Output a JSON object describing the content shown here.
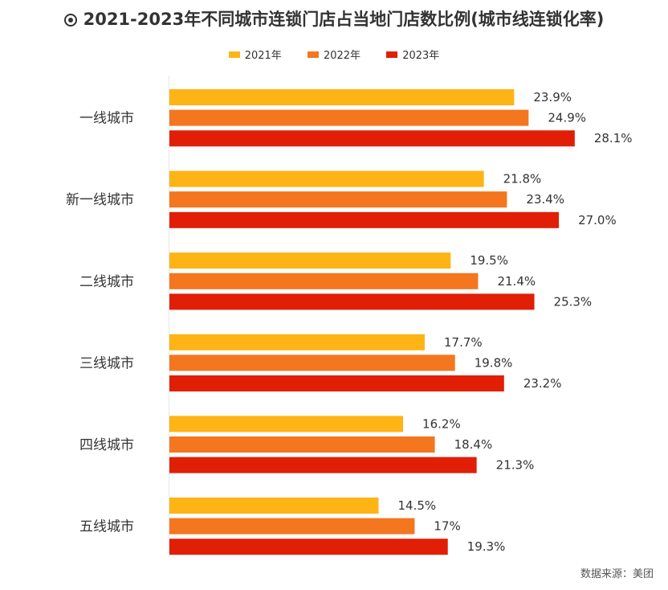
{
  "title": "2021-2023年不同城市连锁门店占当地门店数比例(城市线连锁化率)",
  "title_icon": "radio-target-icon",
  "source": "数据来源：美团",
  "chart_data": {
    "type": "bar",
    "orientation": "horizontal",
    "categories": [
      "一线城市",
      "新一线城市",
      "二线城市",
      "三线城市",
      "四线城市",
      "五线城市"
    ],
    "series": [
      {
        "name": "2021年",
        "color": "#FDB414",
        "values": [
          23.9,
          21.8,
          19.5,
          17.7,
          16.2,
          14.5
        ],
        "labels": [
          "23.9%",
          "21.8%",
          "19.5%",
          "17.7%",
          "16.2%",
          "14.5%"
        ]
      },
      {
        "name": "2022年",
        "color": "#F4761E",
        "values": [
          24.9,
          23.4,
          21.4,
          19.8,
          18.4,
          17
        ],
        "labels": [
          "24.9%",
          "23.4%",
          "21.4%",
          "19.8%",
          "18.4%",
          "17%"
        ]
      },
      {
        "name": "2023年",
        "color": "#E01F06",
        "values": [
          28.1,
          27.0,
          25.3,
          23.2,
          21.3,
          19.3
        ],
        "labels": [
          "28.1%",
          "27.0%",
          "25.3%",
          "23.2%",
          "21.3%",
          "19.3%"
        ]
      }
    ],
    "xlim": [
      0,
      29.5
    ],
    "grid": false,
    "legend_position": "top-center",
    "xlabel": "",
    "ylabel": ""
  }
}
